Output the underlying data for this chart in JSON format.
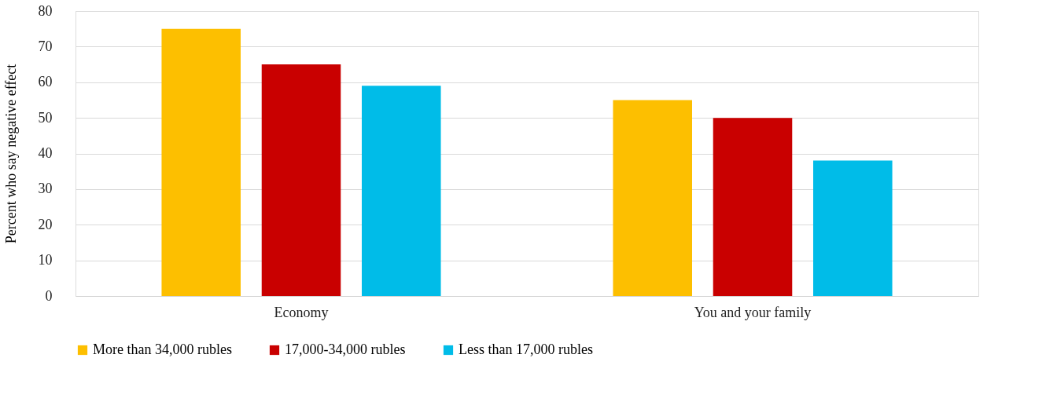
{
  "chart_data": {
    "type": "bar",
    "ylabel": "Percent who say negative effect",
    "categories": [
      "Economy",
      "You and your family"
    ],
    "series": [
      {
        "name": "More than 34,000 rubles",
        "color": "#fdbf00",
        "values": [
          75,
          55
        ]
      },
      {
        "name": "17,000-34,000 rubles",
        "color": "#c90000",
        "values": [
          65,
          50
        ]
      },
      {
        "name": "Less than 17,000 rubles",
        "color": "#00bce8",
        "values": [
          59,
          38
        ]
      }
    ],
    "ylim": [
      0,
      80
    ],
    "yticks": [
      0,
      10,
      20,
      30,
      40,
      50,
      60,
      70,
      80
    ],
    "grid": "y",
    "legend": "bottom"
  }
}
